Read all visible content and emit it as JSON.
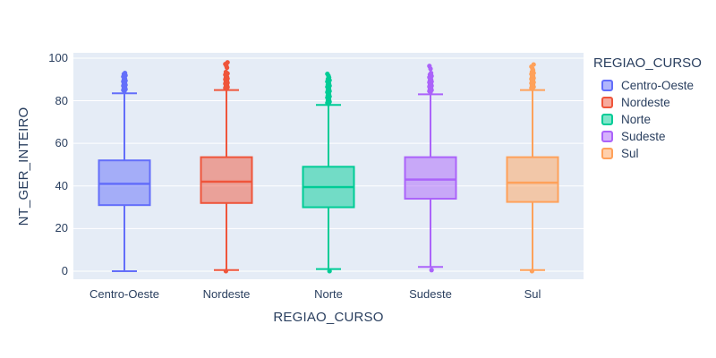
{
  "figure": {
    "background": "#ffffff",
    "plot_background": "#e5ecf6",
    "grid_color": "#ffffff",
    "font_color": "#2a3f5f"
  },
  "chart_data": {
    "type": "box",
    "title": "",
    "xlabel": "REGIAO_CURSO",
    "ylabel": "NT_GER_INTEIRO",
    "categories": [
      "Centro-Oeste",
      "Nordeste",
      "Norte",
      "Sudeste",
      "Sul"
    ],
    "yticks": [
      0,
      20,
      40,
      60,
      80,
      100
    ],
    "ylim": [
      -3.8,
      102.5
    ],
    "grid": true,
    "legend": {
      "title": "REGIAO_CURSO",
      "position": "right"
    },
    "series": [
      {
        "name": "Centro-Oeste",
        "color": "#636EFA",
        "lowerfence": 0,
        "q1": 31,
        "median": 41,
        "q3": 52,
        "upperfence": 83.5,
        "outliers_low": [],
        "outliers_high": [
          84.5,
          85,
          85.4,
          85.8,
          86.2,
          86.6,
          87,
          87.4,
          87.8,
          88.2,
          88.6,
          89,
          89.4,
          89.8,
          90.3,
          90.8,
          91.3,
          91.9,
          92.5,
          93
        ]
      },
      {
        "name": "Nordeste",
        "color": "#EF553B",
        "lowerfence": 0.5,
        "q1": 32,
        "median": 42,
        "q3": 53.5,
        "upperfence": 85,
        "outliers_low": [
          0
        ],
        "outliers_high": [
          85.5,
          86,
          86.4,
          86.8,
          87.2,
          87.6,
          88,
          88.4,
          88.8,
          89.2,
          89.6,
          90,
          90.4,
          90.8,
          91.2,
          91.7,
          92.2,
          92.8,
          93.5,
          95.5,
          96.2,
          97.2,
          98
        ]
      },
      {
        "name": "Norte",
        "color": "#00CC96",
        "lowerfence": 1,
        "q1": 30,
        "median": 39.5,
        "q3": 49,
        "upperfence": 78,
        "outliers_low": [
          0
        ],
        "outliers_high": [
          78.5,
          79,
          79.5,
          80,
          80.5,
          81,
          81.5,
          82,
          82.5,
          83,
          83.5,
          84,
          84.5,
          85,
          85.5,
          86,
          86.5,
          87,
          87.5,
          88,
          88.5,
          89,
          89.6,
          90.2,
          90.9,
          91.7,
          92.6
        ]
      },
      {
        "name": "Sudeste",
        "color": "#AB63FA",
        "lowerfence": 2,
        "q1": 34,
        "median": 43,
        "q3": 53.5,
        "upperfence": 83,
        "outliers_low": [
          0.5
        ],
        "outliers_high": [
          84,
          84.5,
          85,
          85.4,
          85.8,
          86.2,
          86.6,
          87,
          87.4,
          87.8,
          88.2,
          88.6,
          89,
          89.5,
          90,
          90.5,
          91,
          91.6,
          92.3,
          93,
          95,
          96.3
        ]
      },
      {
        "name": "Sul",
        "color": "#FFA15A",
        "lowerfence": 0.5,
        "q1": 32.5,
        "median": 41.5,
        "q3": 53.5,
        "upperfence": 85,
        "outliers_low": [
          0
        ],
        "outliers_high": [
          85.5,
          86,
          86.5,
          87,
          87.4,
          87.8,
          88.2,
          88.6,
          89,
          89.4,
          89.8,
          90.2,
          90.6,
          91,
          91.5,
          92,
          92.5,
          93,
          93.6,
          94.3,
          95,
          96,
          97
        ]
      }
    ]
  }
}
